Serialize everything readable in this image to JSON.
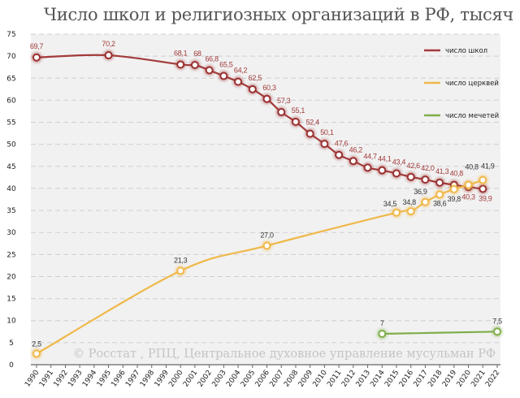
{
  "chart_data": {
    "type": "line",
    "title": "Число школ и религиозных организаций в РФ, тысяч",
    "source_note": "© Росстат , РПЦ, Центральное духовное управление мусульман РФ",
    "x_ticks": [
      1990,
      1991,
      1992,
      1993,
      1994,
      1995,
      1996,
      1997,
      1998,
      1999,
      2000,
      2001,
      2002,
      2003,
      2004,
      2005,
      2006,
      2007,
      2008,
      2009,
      2010,
      2011,
      2012,
      2013,
      2014,
      2015,
      2016,
      2017,
      2018,
      2019,
      2020,
      2021,
      2022
    ],
    "xlim": [
      1990,
      2022
    ],
    "ylim": [
      0,
      75
    ],
    "y_ticks": [
      0,
      5,
      10,
      15,
      20,
      25,
      30,
      35,
      40,
      45,
      50,
      55,
      60,
      65,
      70,
      75
    ],
    "grid": "horizontal dashed",
    "legend": "right",
    "series": [
      {
        "name": "число школ",
        "color": "#a33a3a",
        "x": [
          1990,
          1995,
          2000,
          2001,
          2002,
          2003,
          2004,
          2005,
          2006,
          2007,
          2008,
          2009,
          2010,
          2011,
          2012,
          2013,
          2014,
          2015,
          2016,
          2017,
          2018,
          2019,
          2020,
          2021
        ],
        "y": [
          69.7,
          70.2,
          68.1,
          68,
          66.8,
          65.5,
          64.2,
          62.5,
          60.3,
          57.3,
          55.1,
          52.4,
          50.1,
          47.6,
          46.2,
          44.7,
          44.1,
          43.4,
          42.6,
          42.0,
          41.3,
          40.8,
          40.3,
          39.9
        ],
        "labels": [
          "69,7",
          "70,2",
          "68,1",
          "68",
          "66,8",
          "65,5",
          "64,2",
          "62,5",
          "60,3",
          "57,3",
          "55,1",
          "52,4",
          "50,1",
          "47,6",
          "46,2",
          "44,7",
          "44,1",
          "43,4",
          "42,6",
          "42,0",
          "41,3",
          "40,8",
          "40,3",
          "39,9"
        ]
      },
      {
        "name": "число церквей",
        "color": "#f0b84a",
        "x": [
          1990,
          2000,
          2006,
          2015,
          2016,
          2017,
          2018,
          2019,
          2020,
          2021
        ],
        "y": [
          2.5,
          21.3,
          27.0,
          34.5,
          34.8,
          36.9,
          38.6,
          39.8,
          40.8,
          41.9
        ],
        "labels": [
          "2,5",
          "21,3",
          "27,0",
          "34,5",
          "34,8",
          "36,9",
          "38,6",
          "39,8",
          "40,8",
          "41,9"
        ]
      },
      {
        "name": "число мечетей",
        "color": "#7fae4a",
        "x": [
          2014,
          2022
        ],
        "y": [
          7,
          7.5
        ],
        "labels": [
          "7",
          "7,5"
        ]
      }
    ]
  }
}
